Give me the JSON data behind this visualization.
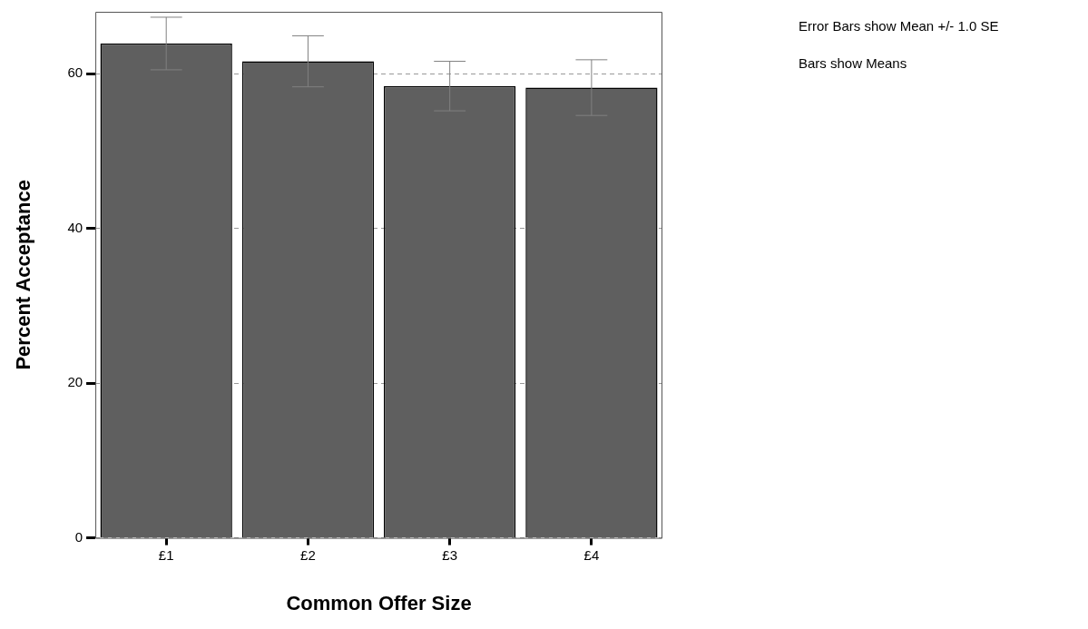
{
  "chart_data": {
    "type": "bar",
    "xlabel": "Common Offer Size",
    "ylabel": "Percent Acceptance",
    "categories": [
      "£1",
      "£2",
      "£3",
      "£4"
    ],
    "values": [
      63.9,
      61.6,
      58.4,
      58.2
    ],
    "errors": [
      3.4,
      3.3,
      3.2,
      3.6
    ],
    "color": "#5f5f5f",
    "ylim": [
      0,
      68
    ],
    "yticks": [
      0,
      20,
      40,
      60
    ],
    "grid": "y",
    "annotations": [
      "Error Bars show Mean +/- 1.0 SE",
      "Bars show Means"
    ]
  }
}
